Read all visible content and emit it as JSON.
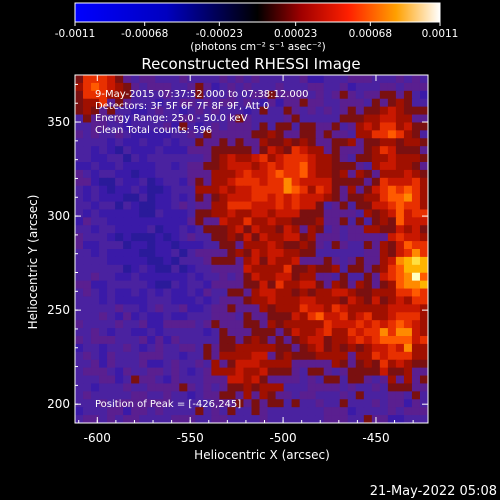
{
  "chart_data": {
    "type": "heatmap",
    "title": "Reconstructed RHESSI Image",
    "xlabel": "Heliocentric X (arcsec)",
    "ylabel": "Heliocentric Y (arcsec)",
    "xlim": [
      -612,
      -422
    ],
    "ylim": [
      190,
      375
    ],
    "x_ticks": [
      "-600",
      "-550",
      "-500",
      "-450"
    ],
    "x_tick_values": [
      -600,
      -550,
      -500,
      -450
    ],
    "y_ticks": [
      "200",
      "250",
      "300",
      "350"
    ],
    "y_tick_values": [
      200,
      250,
      300,
      350
    ],
    "colorbar": {
      "ticks": [
        "-0.0011",
        "-0.00068",
        "-0.00023",
        "0.00023",
        "0.00068",
        "0.0011"
      ],
      "tick_values": [
        -0.0011,
        -0.00068,
        -0.00023,
        0.00023,
        0.00068,
        0.0011
      ],
      "min": -0.0011,
      "max": 0.0011,
      "unit_label": "(photons cm⁻² s⁻¹ asec⁻²)"
    },
    "annotations": [
      "9-May-2015 07:37:52.000 to 07:38:12.000",
      "Detectors: 3F 5F 6F 7F 8F 9F, Att 0",
      "Energy Range: 25.0 - 50.0 keV",
      "Clean     Total counts: 596"
    ],
    "peak_label": "Position of Peak = [-426,245]",
    "peak_position": [
      -426,
      245
    ],
    "grid": false
  },
  "timestamp": "21-May-2022 05:08"
}
